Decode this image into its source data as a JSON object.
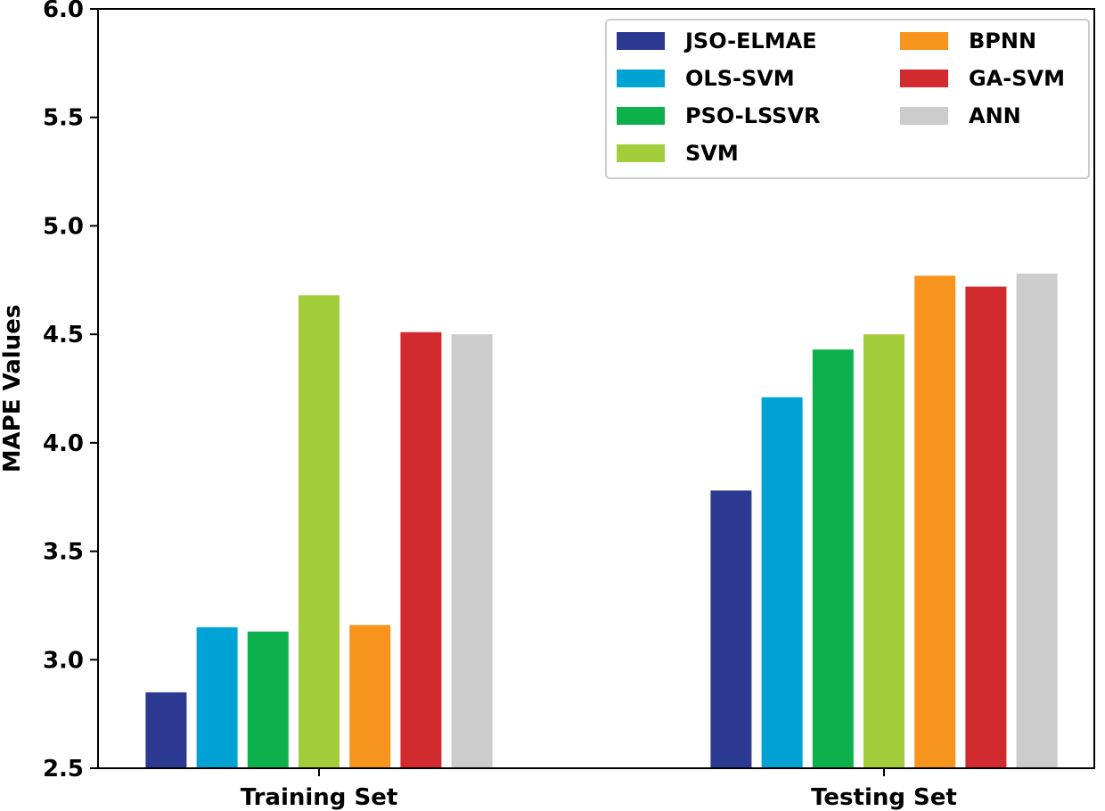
{
  "chart_data": {
    "type": "bar",
    "categories": [
      "Training Set",
      "Testing Set"
    ],
    "ylabel": "MAPE Values",
    "xlabel": "",
    "ylim": [
      2.5,
      6.0
    ],
    "yticks": [
      "2.5",
      "3.0",
      "3.5",
      "4.0",
      "4.5",
      "5.0",
      "5.5",
      "6.0"
    ],
    "grid": false,
    "legend_position": "top-right",
    "series": [
      {
        "name": "JSO-ELMAE",
        "color": "#2b3990",
        "values": [
          2.85,
          3.78
        ]
      },
      {
        "name": "OLS-SVM",
        "color": "#00a3d4",
        "values": [
          3.15,
          4.21
        ]
      },
      {
        "name": "PSO-LSSVR",
        "color": "#0db14b",
        "values": [
          3.13,
          4.43
        ]
      },
      {
        "name": "SVM",
        "color": "#a3cd3b",
        "values": [
          4.68,
          4.5
        ]
      },
      {
        "name": "BPNN",
        "color": "#f7941d",
        "values": [
          3.16,
          4.77
        ]
      },
      {
        "name": "GA-SVM",
        "color": "#d12a2f",
        "values": [
          4.51,
          4.72
        ]
      },
      {
        "name": "ANN",
        "color": "#cccccc",
        "values": [
          4.5,
          4.78
        ]
      }
    ]
  }
}
